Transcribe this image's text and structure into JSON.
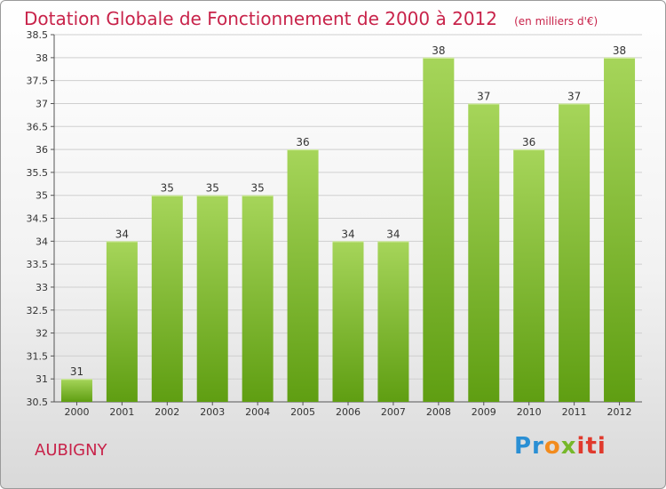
{
  "title": "Dotation Globale de Fonctionnement de 2000 à 2012",
  "unit_note": "(en milliers d'€)",
  "location": "AUBIGNY",
  "logo": {
    "parts": [
      "Pr",
      "o",
      "x",
      "iti"
    ],
    "colors": [
      "#2a8fd4",
      "#f28b1d",
      "#76b82a",
      "#e03a2d"
    ]
  },
  "colors": {
    "bar_top": "#a6d55a",
    "bar_bottom": "#5f9e12",
    "title": "#c8234a",
    "grid": "#cfcfcf"
  },
  "chart_data": {
    "type": "bar",
    "title": "Dotation Globale de Fonctionnement de 2000 à 2012",
    "xlabel": "",
    "ylabel": "",
    "categories": [
      "2000",
      "2001",
      "2002",
      "2003",
      "2004",
      "2005",
      "2006",
      "2007",
      "2008",
      "2009",
      "2010",
      "2011",
      "2012"
    ],
    "values": [
      31,
      34,
      35,
      35,
      35,
      36,
      34,
      34,
      38,
      37,
      36,
      37,
      38
    ],
    "data_labels": [
      "31",
      "34",
      "35",
      "35",
      "35",
      "36",
      "34",
      "34",
      "38",
      "37",
      "36",
      "37",
      "38"
    ],
    "ylim": [
      30.5,
      38.5
    ],
    "yticks": [
      "30.5",
      "31",
      "31.5",
      "32",
      "32.5",
      "33",
      "33.5",
      "34",
      "34.5",
      "35",
      "35.5",
      "36",
      "36.5",
      "37",
      "37.5",
      "38",
      "38.5"
    ],
    "grid": true
  }
}
